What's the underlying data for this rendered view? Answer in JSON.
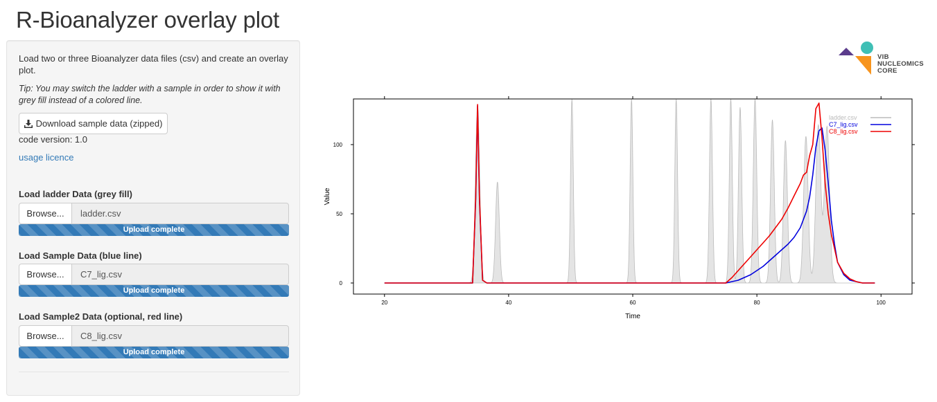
{
  "page": {
    "title": "R-Bioanalyzer overlay plot"
  },
  "sidebar": {
    "intro": "Load two or three Bioanalyzer data files (csv) and create an overlay plot.",
    "tip": "Tip: You may switch the ladder with a sample in order to show it with grey fill instead of a colored line.",
    "download_label": "Download sample data (zipped)",
    "download_icon": "download-icon",
    "code_version": "code version: 1.0",
    "licence_link": "usage licence",
    "inputs": [
      {
        "label": "Load ladder Data (grey fill)",
        "button": "Browse...",
        "filename": "ladder.csv",
        "status": "Upload complete",
        "progress": 1.0
      },
      {
        "label": "Load Sample Data (blue line)",
        "button": "Browse...",
        "filename": "C7_lig.csv",
        "status": "Upload complete",
        "progress": 1.0
      },
      {
        "label": "Load Sample2 Data (optional, red line)",
        "button": "Browse...",
        "filename": "C8_lig.csv",
        "status": "Upload complete",
        "progress": 1.0
      }
    ]
  },
  "logo": {
    "lines": [
      "VIB",
      "NUCLEOMICS",
      "CORE"
    ],
    "colors": [
      "#5b3c8c",
      "#f7941d",
      "#3fbfb5"
    ]
  },
  "chart_data": {
    "type": "line",
    "title": "",
    "xlabel": "Time",
    "ylabel": "Value",
    "xlim": [
      15,
      105
    ],
    "ylim": [
      -8,
      133
    ],
    "xticks": [
      20,
      40,
      60,
      80,
      100
    ],
    "yticks": [
      0,
      50,
      100
    ],
    "grid": false,
    "legend_position": "top-right",
    "ladder": {
      "name": "ladder.csv",
      "color": "#bbbbbb",
      "fill": "#e4e4e4",
      "peaks": [
        {
          "x": 35.0,
          "y": 128,
          "w": 0.35
        },
        {
          "x": 38.2,
          "y": 73,
          "w": 0.3
        },
        {
          "x": 50.2,
          "y": 133,
          "w": 0.22
        },
        {
          "x": 59.8,
          "y": 133,
          "w": 0.22
        },
        {
          "x": 67.0,
          "y": 133,
          "w": 0.22
        },
        {
          "x": 72.6,
          "y": 133,
          "w": 0.24
        },
        {
          "x": 75.8,
          "y": 133,
          "w": 0.24
        },
        {
          "x": 77.3,
          "y": 127,
          "w": 0.26
        },
        {
          "x": 79.7,
          "y": 133,
          "w": 0.28
        },
        {
          "x": 82.5,
          "y": 118,
          "w": 0.3
        },
        {
          "x": 84.6,
          "y": 103,
          "w": 0.32
        },
        {
          "x": 87.9,
          "y": 106,
          "w": 0.36
        },
        {
          "x": 89.9,
          "y": 114,
          "w": 0.4
        },
        {
          "x": 91.3,
          "y": 113,
          "w": 0.4
        }
      ]
    },
    "series": [
      {
        "name": "C7_lig.csv",
        "color": "#0000dd",
        "x": [
          20,
          34.2,
          34.7,
          35.0,
          35.3,
          35.8,
          36.5,
          75.0,
          77,
          79,
          81,
          82,
          83,
          84,
          85,
          86,
          87,
          88,
          88.5,
          89,
          89.5,
          90,
          90.5,
          91,
          91.5,
          92,
          92.5,
          93,
          94,
          95,
          96,
          97,
          99
        ],
        "values": [
          0,
          0,
          60,
          128,
          60,
          2,
          0,
          0,
          2,
          6,
          12,
          16,
          20,
          24,
          28,
          33,
          40,
          52,
          62,
          78,
          98,
          110,
          112,
          96,
          72,
          45,
          28,
          15,
          6,
          2,
          1,
          0,
          0
        ]
      },
      {
        "name": "C8_lig.csv",
        "color": "#ee0000",
        "x": [
          20,
          34.2,
          34.7,
          35.0,
          35.3,
          35.8,
          36.5,
          75.0,
          76,
          77,
          78,
          79,
          80,
          81,
          82,
          83,
          84,
          85,
          86,
          87,
          87.5,
          88,
          88.5,
          89,
          89.5,
          90,
          90.5,
          91,
          91.5,
          92,
          92.5,
          93,
          94,
          95,
          96,
          97,
          99
        ],
        "values": [
          0,
          0,
          62,
          129,
          62,
          2,
          0,
          0,
          4,
          9,
          14,
          19,
          24,
          29,
          34,
          40,
          46,
          54,
          63,
          72,
          78,
          80,
          92,
          100,
          126,
          130,
          105,
          72,
          50,
          35,
          25,
          15,
          7,
          3,
          1,
          0,
          0
        ]
      }
    ]
  }
}
